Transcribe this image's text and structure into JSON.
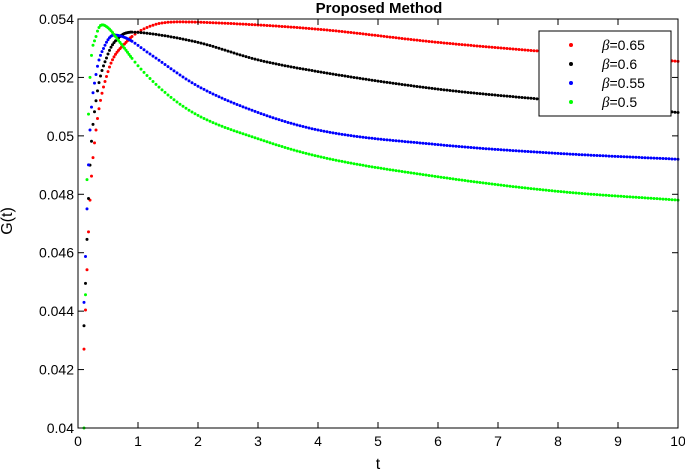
{
  "chart_data": {
    "type": "scatter",
    "title": "Proposed Method",
    "xlabel": "t",
    "ylabel": "G(t)",
    "xlim": [
      0,
      10
    ],
    "ylim": [
      0.04,
      0.054
    ],
    "xticks": [
      0,
      1,
      2,
      3,
      4,
      5,
      6,
      7,
      8,
      9,
      10
    ],
    "yticks": [
      0.04,
      0.042,
      0.044,
      0.046,
      0.048,
      0.05,
      0.052,
      0.054
    ],
    "ytick_labels": [
      "0.04",
      "0.042",
      "0.044",
      "0.046",
      "0.048",
      "0.05",
      "0.052",
      "0.054"
    ],
    "grid": false,
    "legend_position": "top-right",
    "series": [
      {
        "name": "=0.65",
        "greek": "β",
        "color": "#ff0000",
        "x": [
          0.1,
          0.2,
          0.3,
          0.5,
          0.8,
          1.2,
          1.7,
          2.5,
          4,
          6,
          8,
          10
        ],
        "y": [
          0.0427,
          0.0478,
          0.0502,
          0.0522,
          0.0532,
          0.05375,
          0.0539,
          0.05385,
          0.05365,
          0.0532,
          0.05285,
          0.05255
        ]
      },
      {
        "name": "=0.6",
        "greek": "β",
        "color": "#000000",
        "x": [
          0.1,
          0.2,
          0.3,
          0.5,
          0.7,
          0.9,
          1.2,
          2,
          3,
          4,
          6,
          8,
          10
        ],
        "y": [
          0.0435,
          0.049,
          0.0512,
          0.0528,
          0.0534,
          0.05355,
          0.0535,
          0.0532,
          0.0526,
          0.0522,
          0.0516,
          0.0512,
          0.0508
        ]
      },
      {
        "name": "=0.55",
        "greek": "β",
        "color": "#0000ff",
        "x": [
          0.1,
          0.2,
          0.3,
          0.45,
          0.6,
          0.8,
          1.2,
          2,
          3,
          4,
          6,
          8,
          10
        ],
        "y": [
          0.0443,
          0.0502,
          0.0521,
          0.0531,
          0.05345,
          0.05335,
          0.0528,
          0.0517,
          0.0508,
          0.0502,
          0.0497,
          0.0494,
          0.0492
        ]
      },
      {
        "name": "=0.5",
        "greek": "β",
        "color": "#00ff00",
        "x": [
          0.1,
          0.15,
          0.2,
          0.3,
          0.4,
          0.5,
          0.7,
          1,
          1.5,
          2,
          3,
          4,
          6,
          8,
          10
        ],
        "y": [
          0.04,
          0.0485,
          0.052,
          0.0534,
          0.0538,
          0.0537,
          0.0532,
          0.0524,
          0.0514,
          0.0507,
          0.0499,
          0.0493,
          0.0486,
          0.0481,
          0.0478
        ]
      }
    ]
  }
}
